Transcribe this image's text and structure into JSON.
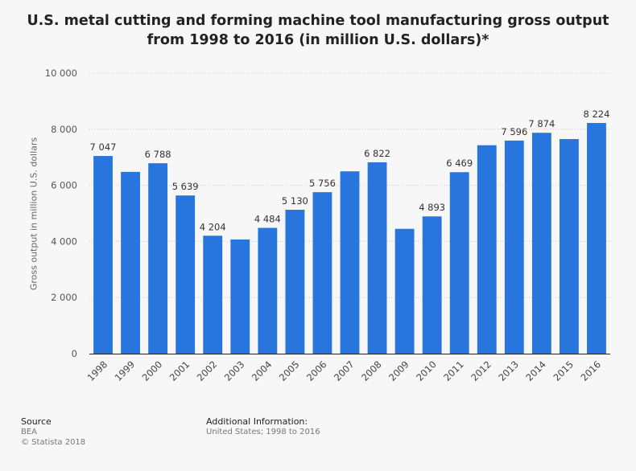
{
  "chart_data": {
    "type": "bar",
    "title": "U.S. metal cutting and forming machine tool manufacturing gross output from 1998 to 2016 (in million U.S. dollars)*",
    "xlabel": "",
    "ylabel": "Gross output in million U.S. dollars",
    "categories": [
      "1998",
      "1999",
      "2000",
      "2001",
      "2002",
      "2003",
      "2004",
      "2005",
      "2006",
      "2007",
      "2008",
      "2009",
      "2010",
      "2011",
      "2012",
      "2013",
      "2014",
      "2015",
      "2016"
    ],
    "values": [
      7047,
      6480,
      6788,
      5639,
      4204,
      4070,
      4484,
      5130,
      5756,
      6500,
      6822,
      4450,
      4893,
      6469,
      7430,
      7596,
      7874,
      7650,
      8224
    ],
    "value_labels": [
      "7 047",
      "",
      "6 788",
      "5 639",
      "4 204",
      "",
      "4 484",
      "5 130",
      "5 756",
      "",
      "6 822",
      "",
      "4 893",
      "6 469",
      "",
      "7 596",
      "7 874",
      "",
      "8 224"
    ],
    "ylim": [
      0,
      10000
    ],
    "yticks": [
      0,
      2000,
      4000,
      6000,
      8000,
      10000
    ],
    "ytick_labels": [
      "0",
      "2 000",
      "4 000",
      "6 000",
      "8 000",
      "10 000"
    ],
    "grid": true,
    "bar_color": "#2876dd"
  },
  "footer": {
    "source_heading": "Source",
    "source_name": "BEA",
    "copyright": "© Statista 2018",
    "additional_heading": "Additional Information:",
    "additional_text": "United States; 1998 to 2016"
  }
}
